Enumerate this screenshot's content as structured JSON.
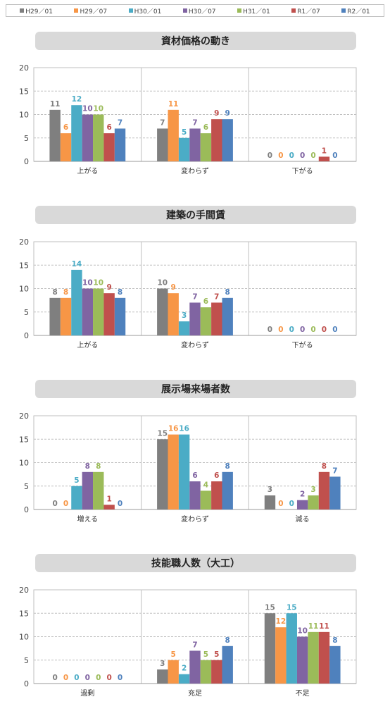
{
  "legend": {
    "series": [
      {
        "name": "H29／01",
        "color": "#7f7f7f"
      },
      {
        "name": "H29／07",
        "color": "#f79646"
      },
      {
        "name": "H30／01",
        "color": "#4bacc6"
      },
      {
        "name": "H30／07",
        "color": "#8064a2"
      },
      {
        "name": "H31／01",
        "color": "#9bbb59"
      },
      {
        "name": "R1／07",
        "color": "#c0504d"
      },
      {
        "name": "R2／01",
        "color": "#4f81bd"
      }
    ]
  },
  "chart_data": [
    {
      "type": "bar",
      "title": "資材価格の動き",
      "categories": [
        "上がる",
        "変わらず",
        "下がる"
      ],
      "ylim": [
        0,
        20
      ],
      "yticks": [
        0,
        5,
        10,
        15,
        20
      ],
      "grid": true,
      "legend": "top",
      "series": [
        {
          "name": "H29／01",
          "values": [
            11,
            7,
            0
          ]
        },
        {
          "name": "H29／07",
          "values": [
            6,
            11,
            0
          ]
        },
        {
          "name": "H30／01",
          "values": [
            12,
            5,
            0
          ]
        },
        {
          "name": "H30／07",
          "values": [
            10,
            7,
            0
          ]
        },
        {
          "name": "H31／01",
          "values": [
            10,
            6,
            0
          ]
        },
        {
          "name": "R1／07",
          "values": [
            6,
            9,
            1
          ]
        },
        {
          "name": "R2／01",
          "values": [
            7,
            9,
            0
          ]
        }
      ]
    },
    {
      "type": "bar",
      "title": "建築の手間賃",
      "categories": [
        "上がる",
        "変わらず",
        "下がる"
      ],
      "ylim": [
        0,
        20
      ],
      "yticks": [
        0,
        5,
        10,
        15,
        20
      ],
      "grid": true,
      "legend": "top",
      "series": [
        {
          "name": "H29／01",
          "values": [
            8,
            10,
            0
          ]
        },
        {
          "name": "H29／07",
          "values": [
            8,
            9,
            0
          ]
        },
        {
          "name": "H30／01",
          "values": [
            14,
            3,
            0
          ]
        },
        {
          "name": "H30／07",
          "values": [
            10,
            7,
            0
          ]
        },
        {
          "name": "H31／01",
          "values": [
            10,
            6,
            0
          ]
        },
        {
          "name": "R1／07",
          "values": [
            9,
            7,
            0
          ]
        },
        {
          "name": "R2／01",
          "values": [
            8,
            8,
            0
          ]
        }
      ]
    },
    {
      "type": "bar",
      "title": "展示場来場者数",
      "categories": [
        "増える",
        "変わらず",
        "減る"
      ],
      "ylim": [
        0,
        20
      ],
      "yticks": [
        0,
        5,
        10,
        15,
        20
      ],
      "grid": true,
      "legend": "top",
      "series": [
        {
          "name": "H29／01",
          "values": [
            0,
            15,
            3
          ]
        },
        {
          "name": "H29／07",
          "values": [
            0,
            16,
            0
          ]
        },
        {
          "name": "H30／01",
          "values": [
            5,
            16,
            0
          ]
        },
        {
          "name": "H30／07",
          "values": [
            8,
            6,
            2
          ]
        },
        {
          "name": "H31／01",
          "values": [
            8,
            4,
            3
          ]
        },
        {
          "name": "R1／07",
          "values": [
            1,
            6,
            8
          ]
        },
        {
          "name": "R2／01",
          "values": [
            0,
            8,
            7
          ]
        }
      ]
    },
    {
      "type": "bar",
      "title": "技能職人数（大工）",
      "categories": [
        "過剰",
        "充足",
        "不足"
      ],
      "ylim": [
        0,
        20
      ],
      "yticks": [
        0,
        5,
        10,
        15,
        20
      ],
      "grid": true,
      "legend": "top",
      "series": [
        {
          "name": "H29／01",
          "values": [
            0,
            3,
            15
          ]
        },
        {
          "name": "H29／07",
          "values": [
            0,
            5,
            12
          ]
        },
        {
          "name": "H30／01",
          "values": [
            0,
            2,
            15
          ]
        },
        {
          "name": "H30／07",
          "values": [
            0,
            7,
            10
          ]
        },
        {
          "name": "H31／01",
          "values": [
            0,
            5,
            11
          ]
        },
        {
          "name": "R1／07",
          "values": [
            0,
            5,
            11
          ]
        },
        {
          "name": "R2／01",
          "values": [
            0,
            8,
            8
          ]
        }
      ]
    }
  ]
}
